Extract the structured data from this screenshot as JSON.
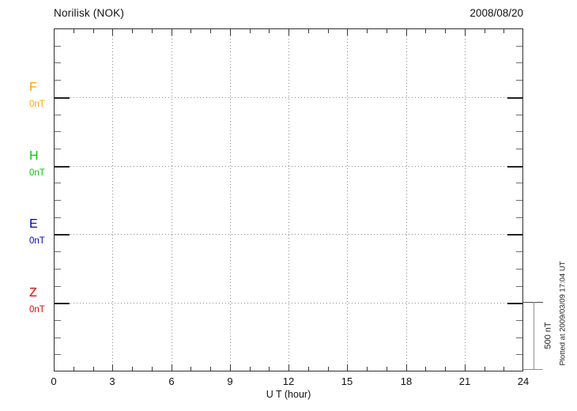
{
  "header": {
    "title": "Norilisk (NOK)",
    "date": "2008/08/20"
  },
  "chart_data": {
    "type": "line",
    "title": "Norilisk (NOK)",
    "station_code": "NOK",
    "date": "2008/08/20",
    "xlabel": "U T (hour)",
    "x_range": [
      0,
      24
    ],
    "x_minor_tick_interval_hours": 1,
    "x_major_ticks": [
      0,
      3,
      6,
      9,
      12,
      15,
      18,
      21,
      24
    ],
    "x_tick_labels": [
      "0",
      "3",
      "6",
      "9",
      "12",
      "15",
      "18",
      "21",
      "24"
    ],
    "grid": "dotted",
    "gridline_hours": [
      3,
      6,
      9,
      12,
      15,
      18,
      21
    ],
    "components": [
      {
        "name": "F",
        "baseline_label": "0nT",
        "color": "#FFA500",
        "values": []
      },
      {
        "name": "H",
        "baseline_label": "0nT",
        "color": "#00CC00",
        "values": []
      },
      {
        "name": "E",
        "baseline_label": "0nT",
        "color": "#0000CC",
        "values": []
      },
      {
        "name": "Z",
        "baseline_label": "0nT",
        "color": "#DD0000",
        "values": []
      }
    ],
    "data_present": false,
    "component_offset_nT": 500,
    "nT_per_minor_tick": 125,
    "scale_bar": {
      "label": "500 nT",
      "value_nT": 500
    },
    "footer_note": "Plotted at 2009/03/09 17:04 UT"
  }
}
